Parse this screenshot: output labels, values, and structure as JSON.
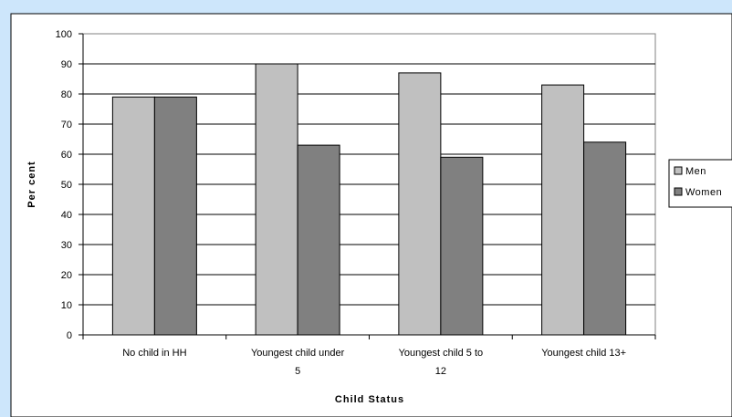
{
  "chart_data": {
    "type": "bar",
    "categories": [
      [
        "No child in HH"
      ],
      [
        "Youngest child under",
        "5"
      ],
      [
        "Youngest child 5 to",
        "12"
      ],
      [
        "Youngest child 13+"
      ]
    ],
    "series": [
      {
        "name": "Men",
        "values": [
          79,
          90,
          87,
          83
        ],
        "color": "#c0c0c0"
      },
      {
        "name": "Women",
        "values": [
          79,
          63,
          59,
          64
        ],
        "color": "#808080"
      }
    ],
    "ylabel": "Per cent",
    "xlabel": "Child Status",
    "ylim": [
      0,
      100
    ],
    "yticks": [
      0,
      10,
      20,
      30,
      40,
      50,
      60,
      70,
      80,
      90,
      100
    ],
    "grid": true,
    "legend": "right",
    "colors": {
      "background": "#cde6fb",
      "chart_area": "#ffffff",
      "plot_area": "#ffffff"
    }
  }
}
